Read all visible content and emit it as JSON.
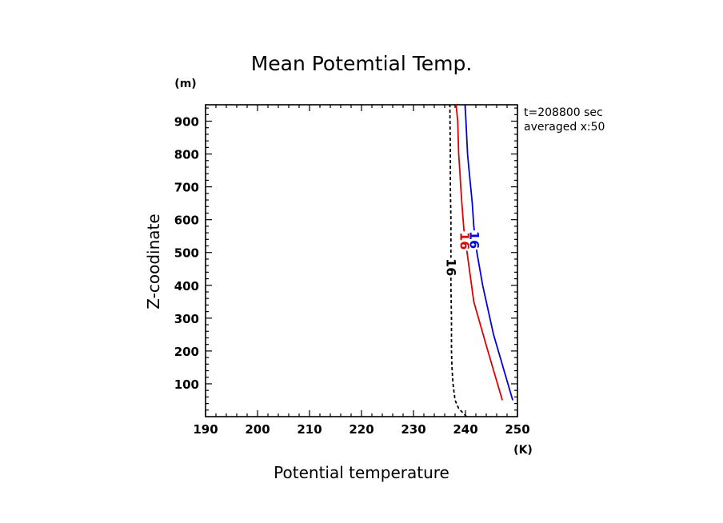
{
  "chart_data": {
    "type": "line",
    "title": "Mean Potemtial Temp.",
    "xlabel": "Potential temperature",
    "ylabel": "Z-coodinate",
    "x_unit": "(K)",
    "y_unit": "(m)",
    "xlim": [
      190,
      250
    ],
    "ylim": [
      0,
      950
    ],
    "xticks": [
      190,
      200,
      210,
      220,
      230,
      240,
      250
    ],
    "yticks": [
      100,
      200,
      300,
      400,
      500,
      600,
      700,
      800,
      900
    ],
    "annotations": [
      "t=208800 sec",
      "averaged  x:50"
    ],
    "grid": false,
    "series": [
      {
        "label": "16",
        "color": "#000000",
        "dash": true,
        "x": [
          240.2,
          239.6,
          238.7,
          238.0,
          237.6,
          237.4,
          237.3,
          237.3,
          237.2,
          237.2,
          237.2,
          237.1,
          237.1,
          237.0
        ],
        "y": [
          0,
          10,
          25,
          50,
          100,
          150,
          200,
          300,
          400,
          500,
          600,
          700,
          800,
          950
        ]
      },
      {
        "label": "16",
        "color": "#e00000",
        "dash": false,
        "x": [
          247.1,
          244.3,
          241.6,
          240.3,
          239.7,
          239.3,
          239.1,
          238.9,
          238.7,
          238.5,
          238.2
        ],
        "y": [
          50,
          200,
          350,
          500,
          570,
          650,
          700,
          750,
          800,
          900,
          950
        ]
      },
      {
        "label": "16",
        "color": "#0000e0",
        "dash": false,
        "x": [
          249.1,
          245.4,
          243.3,
          242.2,
          241.6,
          241.3,
          241.0,
          240.7,
          240.4,
          240.1,
          239.9
        ],
        "y": [
          50,
          250,
          400,
          500,
          580,
          650,
          700,
          750,
          800,
          900,
          950
        ]
      }
    ]
  }
}
